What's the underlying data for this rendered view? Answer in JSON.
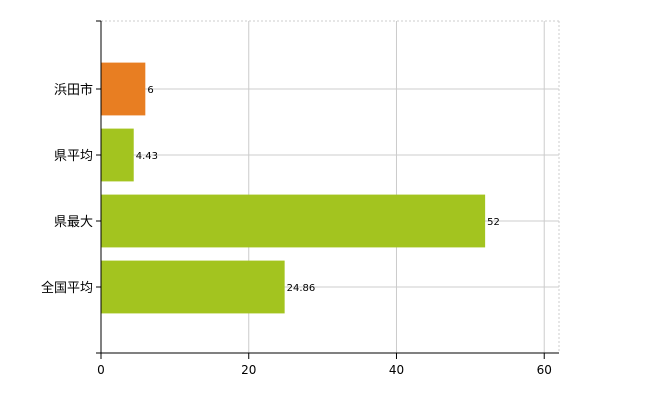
{
  "chart_data": {
    "type": "bar",
    "orientation": "horizontal",
    "categories": [
      "浜田市",
      "県平均",
      "県最大",
      "全国平均"
    ],
    "values": [
      6,
      4.43,
      52,
      24.86
    ],
    "value_labels": [
      "6",
      "4.43",
      "52",
      "24.86"
    ],
    "bar_colors": [
      "#e87e22",
      "#a3c41f",
      "#a3c41f",
      "#a3c41f"
    ],
    "title": "",
    "xlabel": "",
    "ylabel": "",
    "xlim": [
      0,
      62
    ],
    "x_ticks": [
      0,
      20,
      40,
      60
    ],
    "x_tick_labels": [
      "0",
      "20",
      "40",
      "60"
    ],
    "grid": true,
    "legend": "none"
  }
}
